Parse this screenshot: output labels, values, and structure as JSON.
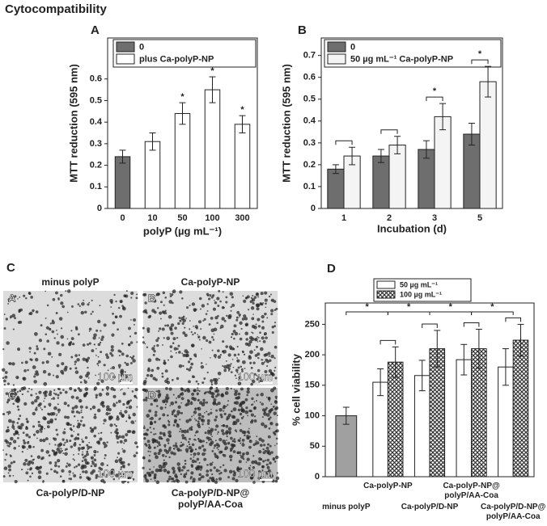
{
  "title": "Cytocompatibility",
  "chart_data": [
    {
      "type": "bar",
      "panel": "A",
      "categories": [
        "0",
        "10",
        "50",
        "100",
        "300"
      ],
      "series": [
        {
          "values": [
            0.24,
            0.31,
            0.44,
            0.55,
            0.39
          ],
          "errors": [
            0.03,
            0.04,
            0.05,
            0.06,
            0.04
          ],
          "colors": [
            "#6e6e6e",
            "#ffffff",
            "#ffffff",
            "#ffffff",
            "#ffffff"
          ],
          "stars": [
            null,
            null,
            "*",
            "*",
            "*"
          ]
        }
      ],
      "legend": [
        {
          "label": "0",
          "color": "#6e6e6e"
        },
        {
          "label": "plus Ca-polyP-NP",
          "color": "#ffffff"
        }
      ],
      "xlabel": "polyP (µg mL⁻¹)",
      "ylabel": "MTT reduction (595 nm)",
      "ylim": [
        0,
        0.79
      ],
      "yticks": [
        0,
        0.1,
        0.2,
        0.3,
        0.4,
        0.5,
        0.6
      ]
    },
    {
      "type": "bar",
      "panel": "B",
      "categories": [
        "1",
        "2",
        "3",
        "5"
      ],
      "series": [
        {
          "name": "0",
          "color": "#6e6e6e",
          "values": [
            0.18,
            0.24,
            0.27,
            0.34
          ],
          "errors": [
            0.02,
            0.03,
            0.04,
            0.05
          ]
        },
        {
          "name": "50 µg mL⁻¹ Ca-polyP-NP",
          "color": "#f4f4f4",
          "values": [
            0.24,
            0.29,
            0.42,
            0.58
          ],
          "errors": [
            0.04,
            0.04,
            0.06,
            0.07
          ]
        }
      ],
      "stars": [
        null,
        null,
        "*",
        "*"
      ],
      "xlabel": "Incubation (d)",
      "ylabel": "MTT reduction (595 nm)",
      "ylim": [
        0,
        0.78
      ],
      "yticks": [
        0,
        0.1,
        0.2,
        0.3,
        0.4,
        0.5,
        0.6,
        0.7
      ]
    },
    {
      "type": "bar",
      "panel": "D",
      "categories": [
        "minus polyP",
        "Ca-polyP-NP",
        "Ca-polyP/D-NP",
        "Ca-polyP-NP@ polyP/AA-Coa",
        "Ca-polyP/D-NP@ polyP/AA-Coa"
      ],
      "series": [
        {
          "name": "50 µg mL⁻¹",
          "color": "#ffffff",
          "colors": [
            "#a0a0a0",
            "#ffffff",
            "#ffffff",
            "#ffffff",
            "#ffffff"
          ],
          "values": [
            100,
            155,
            166,
            192,
            180
          ],
          "errors": [
            14,
            22,
            25,
            25,
            30
          ]
        },
        {
          "name": "100 µg mL⁻¹",
          "color": "crosshatch",
          "values": [
            null,
            188,
            210,
            210,
            224
          ],
          "errors": [
            null,
            25,
            30,
            32,
            26
          ]
        }
      ],
      "group_stars": [
        "*",
        "*",
        "*",
        "*"
      ],
      "ylabel": "% cell viability",
      "ylim": [
        0,
        285
      ],
      "yticks": [
        0,
        50,
        100,
        150,
        200,
        250
      ]
    }
  ],
  "micrographs": {
    "panel": "C",
    "images": [
      {
        "letter": "A",
        "caption": "minus polyP",
        "scale": "100 µm"
      },
      {
        "letter": "B",
        "caption": "Ca-polyP-NP",
        "scale": "100 µm"
      },
      {
        "letter": "C",
        "caption": "Ca-polyP/D-NP",
        "scale": "100 µm"
      },
      {
        "letter": "D",
        "caption": "Ca-polyP/D-NP@ polyP/AA-Coa",
        "scale": "100 µm"
      }
    ]
  }
}
